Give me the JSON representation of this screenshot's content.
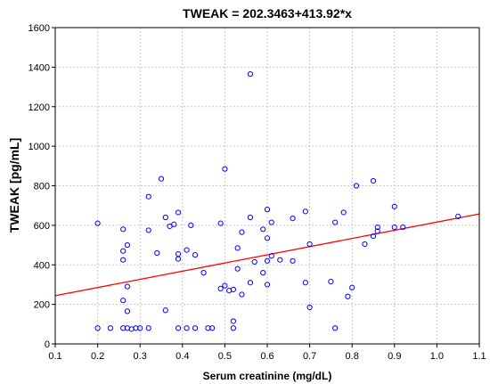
{
  "chart_data": {
    "type": "scatter",
    "title": "TWEAK = 202.3463+413.92*x",
    "xlabel": "Serum creatinine (mg/dL)",
    "ylabel": "TWEAK [pg/mL]",
    "xlim": [
      0.1,
      1.1
    ],
    "ylim": [
      0,
      1600
    ],
    "xticks": [
      0.1,
      0.2,
      0.3,
      0.4,
      0.5,
      0.6,
      0.7,
      0.8,
      0.9,
      1.0,
      1.1
    ],
    "xtick_labels": [
      "0.1",
      "0.2",
      "0.3",
      "0.4",
      "0.5",
      "0.6",
      "0.7",
      "0.8",
      "0.9",
      "1.0",
      "1.1"
    ],
    "yticks": [
      0,
      200,
      400,
      600,
      800,
      1000,
      1200,
      1400,
      1600
    ],
    "ytick_labels": [
      "0",
      "200",
      "400",
      "600",
      "800",
      "1000",
      "1200",
      "1400",
      "1600"
    ],
    "grid": true,
    "point_color": "#0000ff",
    "fit_color": "#ff0000",
    "fit": {
      "intercept": 202.3463,
      "slope": 413.92
    },
    "points": [
      [
        0.2,
        610
      ],
      [
        0.2,
        80
      ],
      [
        0.23,
        80
      ],
      [
        0.26,
        580
      ],
      [
        0.26,
        470
      ],
      [
        0.26,
        425
      ],
      [
        0.26,
        220
      ],
      [
        0.26,
        80
      ],
      [
        0.27,
        500
      ],
      [
        0.27,
        290
      ],
      [
        0.27,
        165
      ],
      [
        0.27,
        80
      ],
      [
        0.28,
        75
      ],
      [
        0.29,
        80
      ],
      [
        0.3,
        80
      ],
      [
        0.32,
        745
      ],
      [
        0.32,
        575
      ],
      [
        0.32,
        80
      ],
      [
        0.34,
        460
      ],
      [
        0.35,
        835
      ],
      [
        0.36,
        640
      ],
      [
        0.36,
        170
      ],
      [
        0.37,
        595
      ],
      [
        0.38,
        605
      ],
      [
        0.39,
        665
      ],
      [
        0.39,
        455
      ],
      [
        0.39,
        430
      ],
      [
        0.39,
        80
      ],
      [
        0.41,
        475
      ],
      [
        0.41,
        80
      ],
      [
        0.42,
        600
      ],
      [
        0.43,
        450
      ],
      [
        0.43,
        80
      ],
      [
        0.45,
        360
      ],
      [
        0.46,
        80
      ],
      [
        0.47,
        80
      ],
      [
        0.49,
        610
      ],
      [
        0.49,
        280
      ],
      [
        0.5,
        885
      ],
      [
        0.5,
        295
      ],
      [
        0.51,
        270
      ],
      [
        0.52,
        275
      ],
      [
        0.52,
        115
      ],
      [
        0.52,
        80
      ],
      [
        0.53,
        485
      ],
      [
        0.53,
        380
      ],
      [
        0.54,
        565
      ],
      [
        0.54,
        250
      ],
      [
        0.56,
        1365
      ],
      [
        0.56,
        640
      ],
      [
        0.56,
        310
      ],
      [
        0.57,
        415
      ],
      [
        0.59,
        580
      ],
      [
        0.59,
        360
      ],
      [
        0.6,
        680
      ],
      [
        0.6,
        535
      ],
      [
        0.6,
        420
      ],
      [
        0.6,
        300
      ],
      [
        0.61,
        615
      ],
      [
        0.61,
        445
      ],
      [
        0.63,
        425
      ],
      [
        0.66,
        635
      ],
      [
        0.66,
        420
      ],
      [
        0.69,
        670
      ],
      [
        0.69,
        310
      ],
      [
        0.7,
        505
      ],
      [
        0.7,
        185
      ],
      [
        0.75,
        315
      ],
      [
        0.76,
        615
      ],
      [
        0.76,
        80
      ],
      [
        0.78,
        665
      ],
      [
        0.79,
        240
      ],
      [
        0.8,
        285
      ],
      [
        0.81,
        800
      ],
      [
        0.83,
        505
      ],
      [
        0.85,
        825
      ],
      [
        0.85,
        545
      ],
      [
        0.86,
        590
      ],
      [
        0.86,
        570
      ],
      [
        0.9,
        695
      ],
      [
        0.9,
        590
      ],
      [
        0.92,
        590
      ],
      [
        1.05,
        645
      ]
    ]
  }
}
